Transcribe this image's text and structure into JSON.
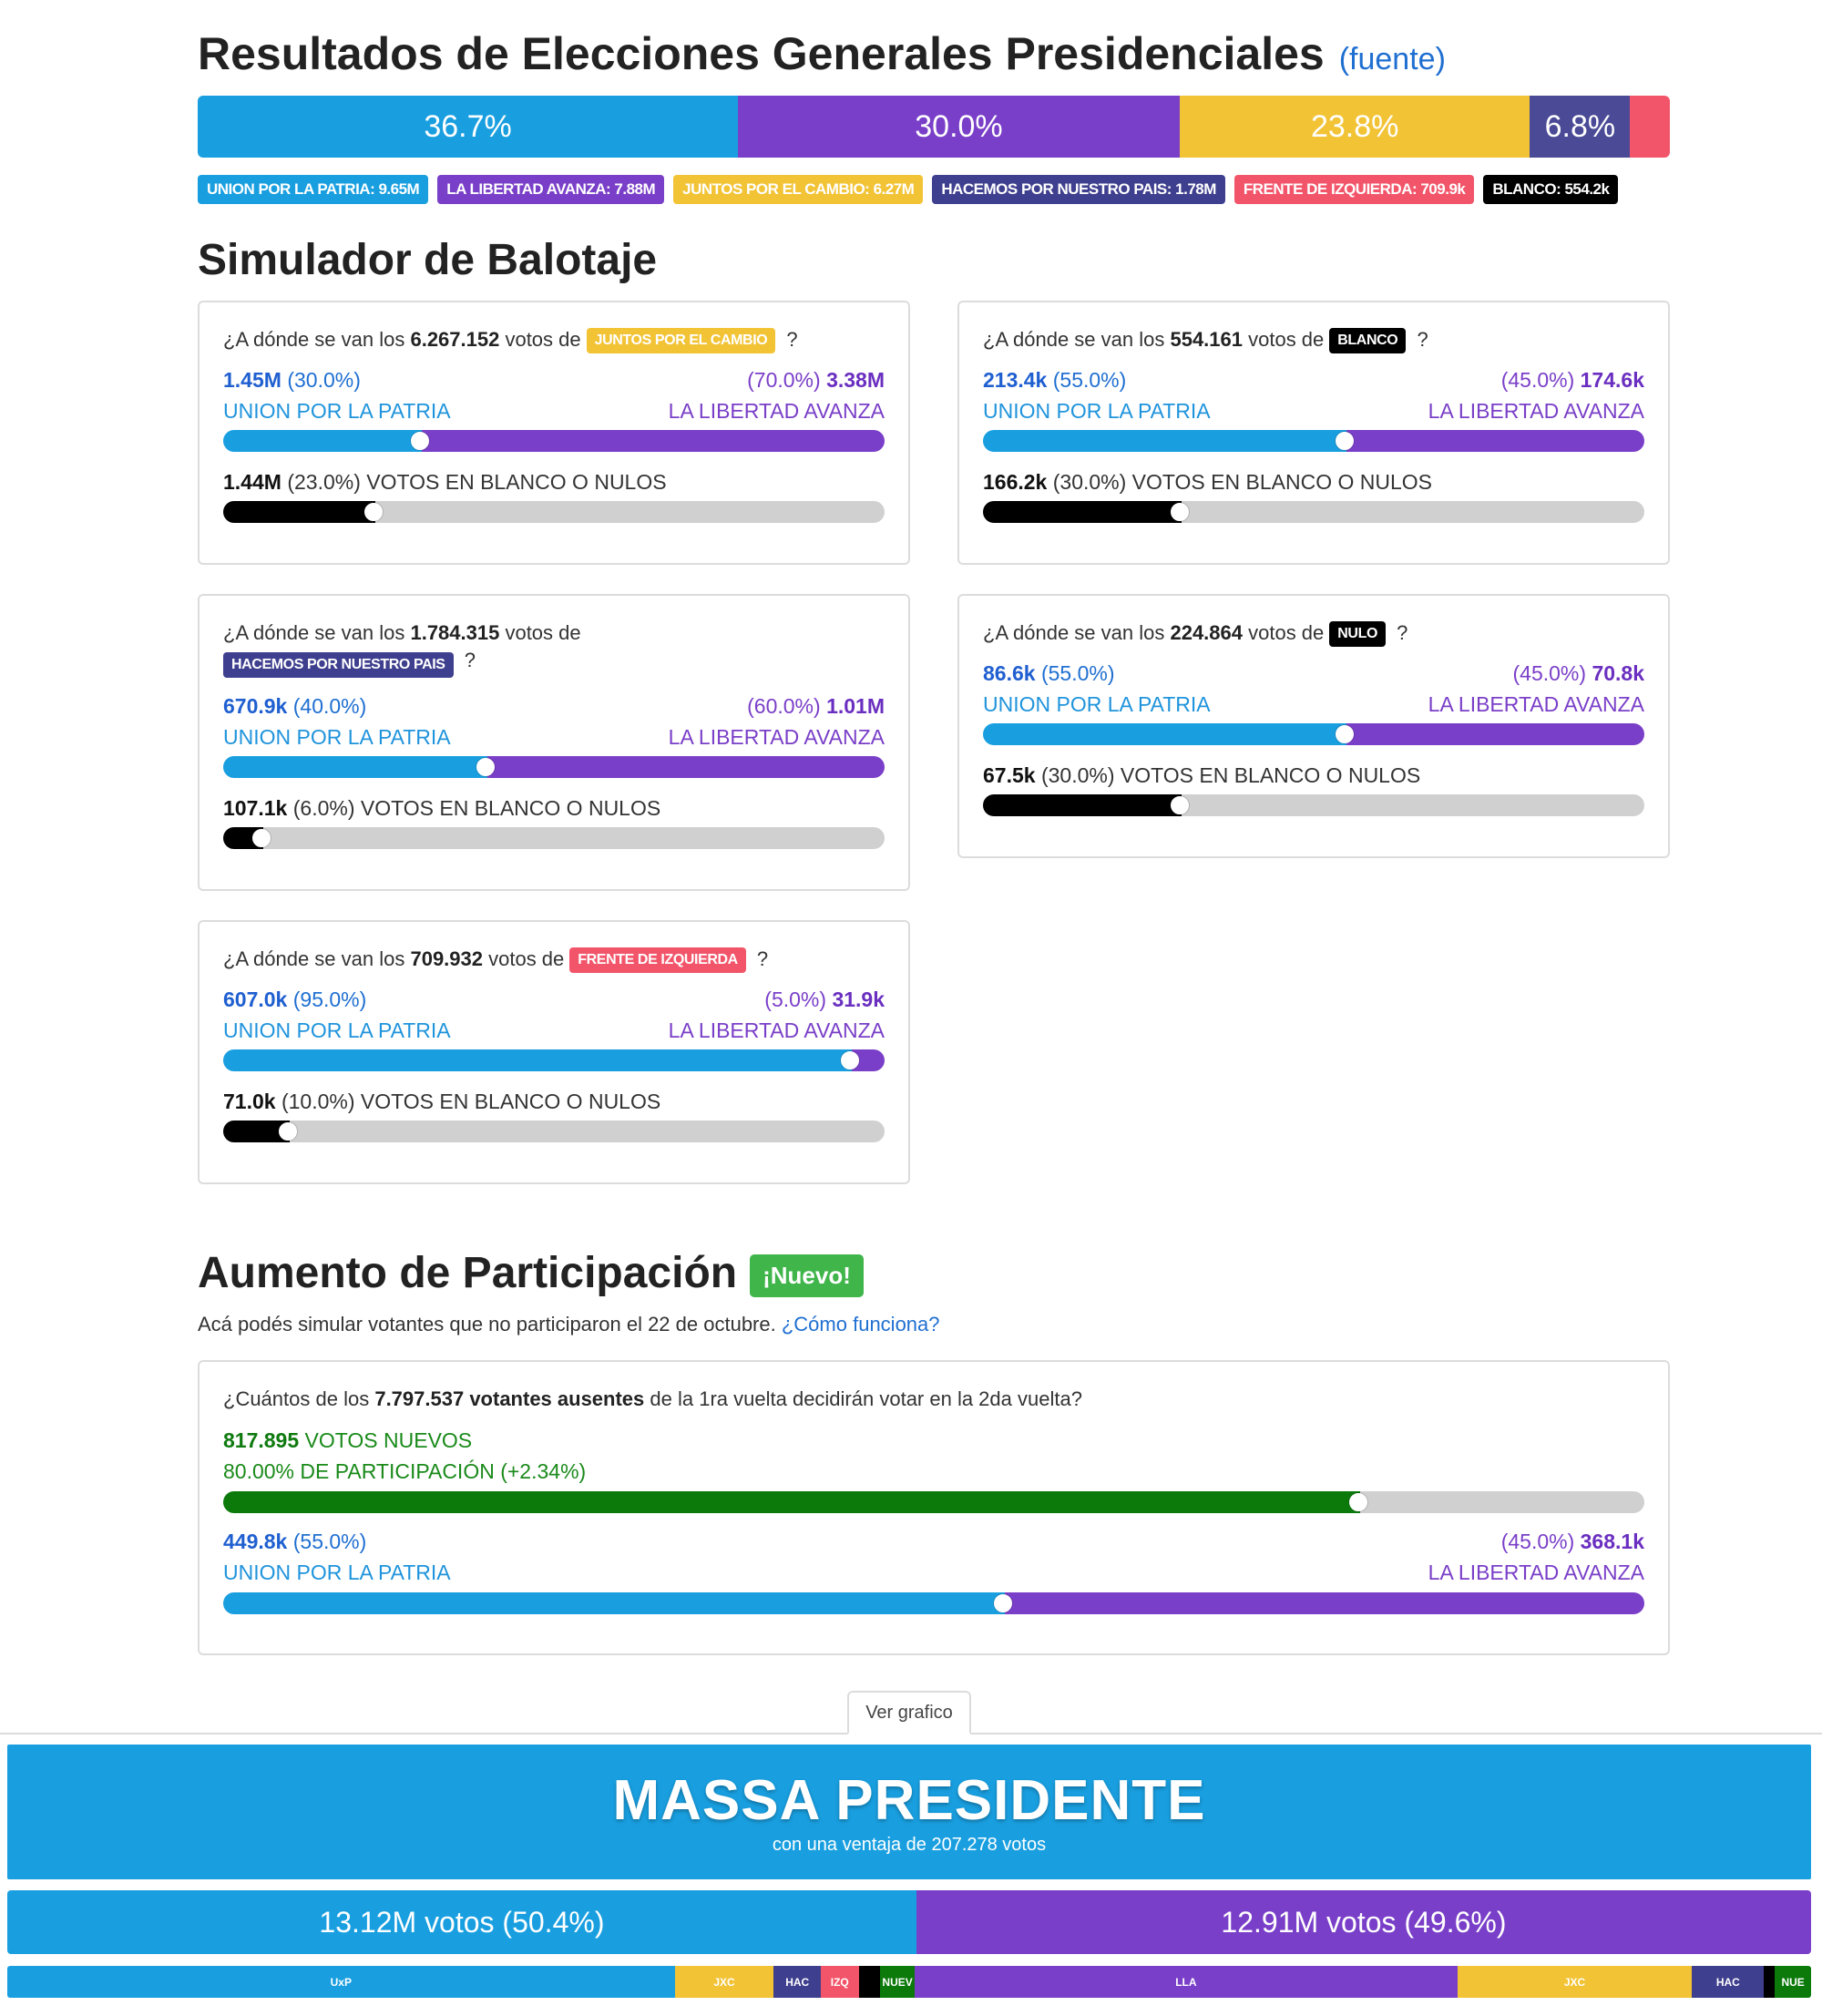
{
  "header": {
    "title": "Resultados de Elecciones Generales Presidenciales",
    "source_link": "(fuente)"
  },
  "colors": {
    "uxp": "#199fe0",
    "lla": "#7a3fc8",
    "jxc": "#f2c335",
    "hac": "#3f3f8f",
    "fit": "#f2556a",
    "blanco": "#000000",
    "gray": "#d0d0d0",
    "green": "#0b7a0b"
  },
  "results_bar": [
    {
      "label": "36.7%",
      "share": 0.367,
      "color": "#199fe0"
    },
    {
      "label": "30.0%",
      "share": 0.3,
      "color": "#7a3fc8"
    },
    {
      "label": "23.8%",
      "share": 0.238,
      "color": "#f2c335"
    },
    {
      "label": "6.8%",
      "share": 0.068,
      "color": "#4a4a96"
    },
    {
      "label": "",
      "share": 0.027,
      "color": "#f2556a"
    }
  ],
  "legend": [
    {
      "text": "UNION POR LA PATRIA: 9.65M",
      "color": "#199fe0"
    },
    {
      "text": "LA LIBERTAD AVANZA: 7.88M",
      "color": "#7a3fc8"
    },
    {
      "text": "JUNTOS POR EL CAMBIO: 6.27M",
      "color": "#f2c335"
    },
    {
      "text": "HACEMOS POR NUESTRO PAIS: 1.78M",
      "color": "#3f3f8f"
    },
    {
      "text": "FRENTE DE IZQUIERDA: 709.9k",
      "color": "#f2556a"
    },
    {
      "text": "BLANCO: 554.2k",
      "color": "#000000"
    }
  ],
  "simulator": {
    "title": "Simulador de Balotaje",
    "q_prefix": "¿A dónde se van los",
    "q_mid": "votos de",
    "q_end": "?",
    "uxp_label": "UNION POR LA PATRIA",
    "lla_label": "LA LIBERTAD AVANZA",
    "blank_suffix": "VOTOS EN BLANCO O NULOS",
    "cards": [
      {
        "votes": "6.267.152",
        "party": "JUNTOS POR EL CAMBIO",
        "party_color": "#f2c335",
        "uxp_num": "1.45M",
        "uxp_pct": "(30.0%)",
        "uxp_share": 0.3,
        "lla_pct": "(70.0%)",
        "lla_num": "3.38M",
        "blank_num": "1.44M",
        "blank_pct": "(23.0%)",
        "blank_share": 0.23
      },
      {
        "votes": "554.161",
        "party": "BLANCO",
        "party_color": "#000000",
        "uxp_num": "213.4k",
        "uxp_pct": "(55.0%)",
        "uxp_share": 0.55,
        "lla_pct": "(45.0%)",
        "lla_num": "174.6k",
        "blank_num": "166.2k",
        "blank_pct": "(30.0%)",
        "blank_share": 0.3
      },
      {
        "votes": "1.784.315",
        "party": "HACEMOS POR NUESTRO PAIS",
        "party_color": "#3f3f8f",
        "uxp_num": "670.9k",
        "uxp_pct": "(40.0%)",
        "uxp_share": 0.4,
        "lla_pct": "(60.0%)",
        "lla_num": "1.01M",
        "blank_num": "107.1k",
        "blank_pct": "(6.0%)",
        "blank_share": 0.06
      },
      {
        "votes": "224.864",
        "party": "NULO",
        "party_color": "#000000",
        "uxp_num": "86.6k",
        "uxp_pct": "(55.0%)",
        "uxp_share": 0.55,
        "lla_pct": "(45.0%)",
        "lla_num": "70.8k",
        "blank_num": "67.5k",
        "blank_pct": "(30.0%)",
        "blank_share": 0.3
      },
      {
        "votes": "709.932",
        "party": "FRENTE DE IZQUIERDA",
        "party_color": "#f2556a",
        "uxp_num": "607.0k",
        "uxp_pct": "(95.0%)",
        "uxp_share": 0.95,
        "lla_pct": "(5.0%)",
        "lla_num": "31.9k",
        "blank_num": "71.0k",
        "blank_pct": "(10.0%)",
        "blank_share": 0.1
      }
    ]
  },
  "participation": {
    "title": "Aumento de Participación",
    "badge": "¡Nuevo!",
    "subtitle": "Acá podés simular votantes que no participaron el 22 de octubre.",
    "how_link": "¿Cómo funciona?",
    "q_prefix": "¿Cuántos de los",
    "q_bold": "7.797.537 votantes ausentes",
    "q_suffix": "de la 1ra vuelta decidirán votar en la 2da vuelta?",
    "new_votes_num": "817.895",
    "new_votes_label": "VOTOS NUEVOS",
    "participation_text": "80.00% DE PARTICIPACIÓN (+2.34%)",
    "participation_share": 0.8,
    "uxp_num": "449.8k",
    "uxp_pct": "(55.0%)",
    "uxp_share": 0.55,
    "lla_pct": "(45.0%)",
    "lla_num": "368.1k",
    "uxp_label": "UNION POR LA PATRIA",
    "lla_label": "LA LIBERTAD AVANZA"
  },
  "tab": {
    "label": "Ver grafico"
  },
  "winner": {
    "headline": "MASSA PRESIDENTE",
    "detail": "con una ventaja de 207.278 votos"
  },
  "final_bar": [
    {
      "label": "13.12M votos (50.4%)",
      "share": 0.504,
      "color": "#199fe0"
    },
    {
      "label": "12.91M votos (49.6%)",
      "share": 0.496,
      "color": "#7a3fc8"
    }
  ],
  "breakdown": [
    {
      "label": "UxP",
      "share": 0.37,
      "color": "#199fe0"
    },
    {
      "label": "JXC",
      "share": 0.055,
      "color": "#f2c335"
    },
    {
      "label": "HAC",
      "share": 0.026,
      "color": "#3f3f8f"
    },
    {
      "label": "IZQ",
      "share": 0.021,
      "color": "#f2556a"
    },
    {
      "label": "",
      "share": 0.012,
      "color": "#000000"
    },
    {
      "label": "NUEV",
      "share": 0.019,
      "color": "#0b7a0b"
    },
    {
      "label": "LLA",
      "share": 0.301,
      "color": "#7a3fc8"
    },
    {
      "label": "JXC",
      "share": 0.13,
      "color": "#f2c335"
    },
    {
      "label": "HAC",
      "share": 0.04,
      "color": "#3f3f8f"
    },
    {
      "label": "",
      "share": 0.006,
      "color": "#000000"
    },
    {
      "label": "NUE",
      "share": 0.02,
      "color": "#0b7a0b"
    }
  ]
}
